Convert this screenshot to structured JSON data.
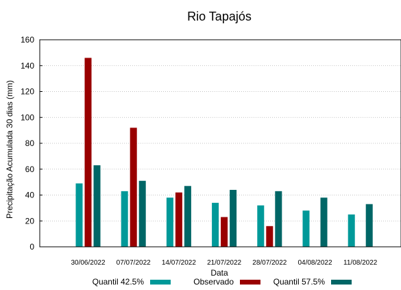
{
  "chart_data": {
    "type": "bar",
    "title": "Rio Tapajós",
    "xlabel": "Data",
    "ylabel": "Precipitação Acumulada 30 dias (mm)",
    "ylim": [
      0,
      160
    ],
    "yticks": [
      0,
      20,
      40,
      60,
      80,
      100,
      120,
      140,
      160
    ],
    "grid": true,
    "legend": "bottom",
    "categories": [
      "30/06/2022",
      "07/07/2022",
      "14/07/2022",
      "21/07/2022",
      "28/07/2022",
      "04/08/2022",
      "11/08/2022"
    ],
    "series": [
      {
        "name": "Quantil 42.5%",
        "color": "#009999",
        "values": [
          49,
          43,
          38,
          34,
          32,
          28,
          25
        ]
      },
      {
        "name": "Observado",
        "color": "#990000",
        "values": [
          146,
          92,
          42,
          23,
          16,
          null,
          null
        ]
      },
      {
        "name": "Quantil 57.5%",
        "color": "#006666",
        "values": [
          63,
          51,
          47,
          44,
          43,
          38,
          33
        ]
      }
    ]
  }
}
